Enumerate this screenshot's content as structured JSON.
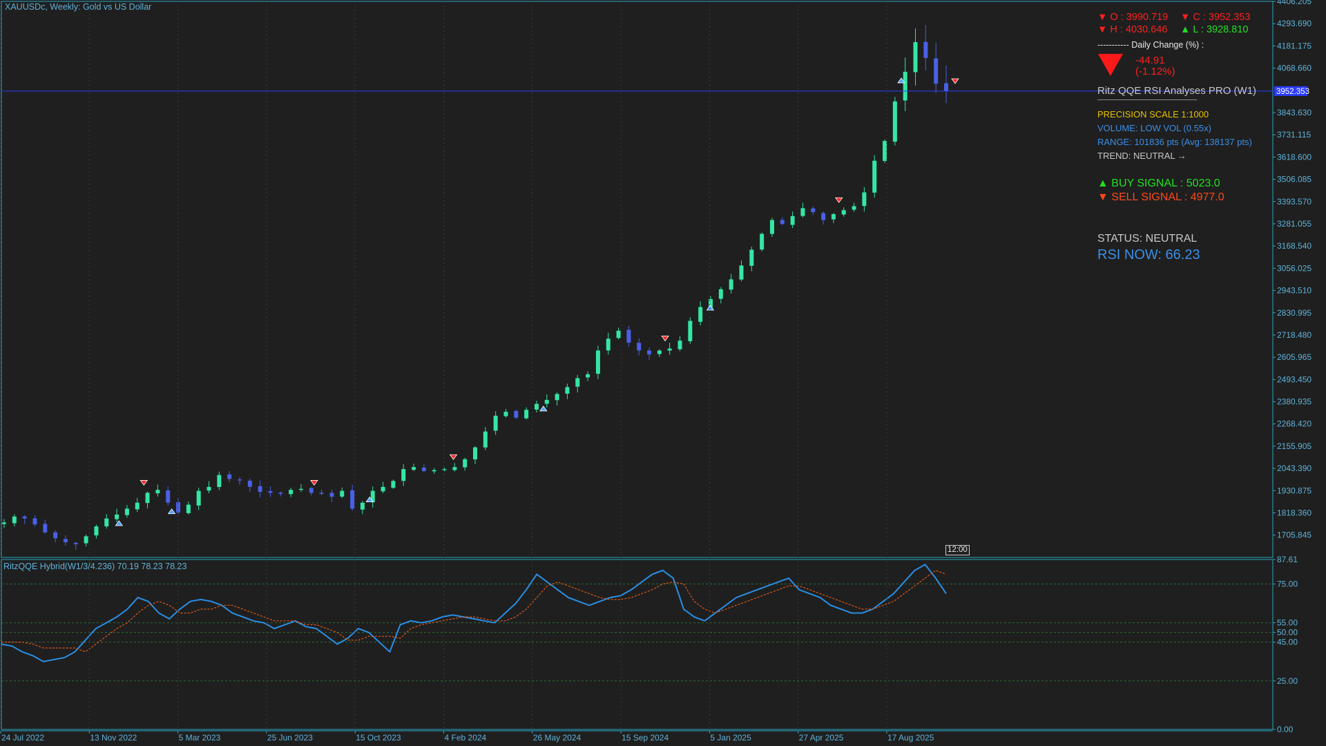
{
  "window": {
    "symbol_title": "XAUUSDc, Weekly:  Gold vs US Dollar",
    "indicator_title": "RitzQQE Hybrid(W1/3/4.236) 70.19 78.23 78.23",
    "time_badge": "12:00",
    "current_price_label": "3952.353"
  },
  "ohlc_panel": {
    "open": "▼ O : 3990.719",
    "close": "▼ C : 3952.353",
    "high": "▼ H : 4030.646",
    "low": "▲ L : 3928.810",
    "daily_change_label": "----------- Daily Change (%) :",
    "change_value": "-44.91",
    "change_percent": "(-1.12%)",
    "direction_icon": "down-triangle-icon"
  },
  "info_panel": {
    "title": "Ritz QQE RSI Analyses PRO (W1)",
    "precision": "PRECISION SCALE 1:1000",
    "volume": "VOLUME: LOW VOL (0.55x)",
    "range": "RANGE: 101836 pts (Avg: 138137 pts)",
    "trend": "TREND: NEUTRAL →",
    "buy_signal": "▲ BUY SIGNAL : 5023.0",
    "sell_signal": "▼ SELL SIGNAL : 4977.0",
    "status": "STATUS: NEUTRAL",
    "rsi_now": "RSI NOW: 66.23"
  },
  "colors": {
    "background": "#1f1f1f",
    "axis": "#2aa7c4",
    "bull": "#34e6a4",
    "bear": "#4a60e6",
    "price_line": "#2b3cff",
    "rsi_line": "#2a8fe6",
    "signal_line": "#e05a1c",
    "buy_arrow": "#4aa3ff",
    "sell_arrow": "#ff2a2a",
    "gold_text": "#e6c200",
    "info_blue": "#3b8fe8"
  },
  "chart_data": [
    {
      "type": "candlestick",
      "title": "XAUUSDc, Weekly:  Gold vs US Dollar",
      "ylim": [
        1593.095,
        4406.205
      ],
      "y_ticks": [
        "4406.205",
        "4293.690",
        "4181.175",
        "4068.660",
        "3843.630",
        "3731.115",
        "3618.600",
        "3506.085",
        "3393.570",
        "3281.055",
        "3168.540",
        "3056.025",
        "2943.510",
        "2830.995",
        "2718.480",
        "2605.965",
        "2493.450",
        "2380.935",
        "2268.420",
        "2155.905",
        "2043.390",
        "1930.875",
        "1818.360",
        "1705.845"
      ],
      "x_ticks": [
        "24 Jul 2022",
        "13 Nov 2022",
        "5 Mar 2023",
        "25 Jun 2023",
        "15 Oct 2023",
        "4 Feb 2024",
        "26 May 2024",
        "15 Sep 2024",
        "5 Jan 2025",
        "27 Apr 2025",
        "17 Aug 2025"
      ],
      "close_keypoints": [
        1770,
        1800,
        1790,
        1760,
        1720,
        1690,
        1670,
        1660,
        1700,
        1750,
        1790,
        1810,
        1840,
        1870,
        1920,
        1935,
        1870,
        1820,
        1860,
        1930,
        1950,
        2010,
        1990,
        1985,
        1950,
        1925,
        1920,
        1915,
        1935,
        1940,
        1920,
        1915,
        1900,
        1930,
        1840,
        1870,
        1930,
        1950,
        1980,
        2040,
        2050,
        2030,
        2035,
        2040,
        2050,
        2090,
        2150,
        2230,
        2310,
        2330,
        2300,
        2340,
        2370,
        2390,
        2420,
        2455,
        2500,
        2520,
        2640,
        2700,
        2740,
        2680,
        2640,
        2620,
        2640,
        2650,
        2690,
        2790,
        2860,
        2900,
        2950,
        3000,
        3070,
        3150,
        3230,
        3300,
        3280,
        3320,
        3360,
        3340,
        3300,
        3330,
        3350,
        3370,
        3440,
        3600,
        3700,
        3900,
        4050,
        4200,
        4120,
        3990,
        3952
      ],
      "current_price": 3952.353,
      "buy_signals": [
        "13 Nov 2022",
        "5 Mar 2023",
        "15 Oct 2023",
        "26 May 2024",
        "5 Jan 2025",
        "17 Aug 2025"
      ],
      "sell_signals": [
        "13 Nov 2022",
        "25 Jun 2023",
        "4 Feb 2024",
        "15 Sep 2024",
        "27 Apr 2025",
        "17 Aug 2025"
      ]
    },
    {
      "type": "line",
      "title": "RitzQQE Hybrid(W1/3/4.236) 70.19 78.23 78.23",
      "ylim": [
        0,
        87.61
      ],
      "y_ticks": [
        "87.61",
        "75.00",
        "55.00",
        "50.00",
        "45.00",
        "25.00",
        "0.00"
      ],
      "levels": [
        75,
        55,
        50,
        45,
        25
      ],
      "series": [
        {
          "name": "RSI",
          "color": "#2a8fe6",
          "values": [
            44,
            43,
            40,
            38,
            35,
            36,
            37,
            40,
            46,
            52,
            55,
            58,
            62,
            68,
            66,
            60,
            57,
            62,
            66,
            67,
            66,
            64,
            60,
            58,
            56,
            55,
            52,
            54,
            56,
            53,
            52,
            48,
            44,
            47,
            52,
            50,
            45,
            40,
            54,
            56,
            55,
            56,
            58,
            59,
            58,
            57,
            56,
            55,
            60,
            65,
            72,
            80,
            76,
            72,
            68,
            66,
            64,
            66,
            68,
            69,
            72,
            76,
            80,
            82,
            78,
            62,
            58,
            56,
            60,
            64,
            68,
            70,
            72,
            74,
            76,
            78,
            72,
            70,
            68,
            64,
            62,
            60,
            60,
            62,
            66,
            70,
            76,
            82,
            85,
            78,
            70
          ],
          "x_span": "24 Jul 2022 to 17 Aug 2025"
        },
        {
          "name": "Signal",
          "color": "#e05a1c",
          "values": [
            45,
            45,
            45,
            44,
            42,
            42,
            42,
            42,
            40,
            44,
            48,
            52,
            55,
            60,
            64,
            66,
            64,
            60,
            60,
            62,
            62,
            64,
            64,
            62,
            60,
            58,
            56,
            56,
            56,
            54,
            54,
            52,
            50,
            46,
            46,
            48,
            48,
            48,
            47,
            52,
            54,
            55,
            56,
            57,
            58,
            58,
            57,
            56,
            56,
            58,
            62,
            68,
            74,
            76,
            74,
            72,
            70,
            68,
            67,
            67,
            68,
            70,
            72,
            75,
            76,
            75,
            66,
            62,
            60,
            62,
            64,
            66,
            68,
            70,
            72,
            74,
            74,
            72,
            70,
            68,
            66,
            64,
            62,
            62,
            64,
            66,
            70,
            74,
            78,
            82,
            80
          ],
          "x_span": "24 Jul 2022 to 17 Aug 2025"
        }
      ]
    }
  ]
}
